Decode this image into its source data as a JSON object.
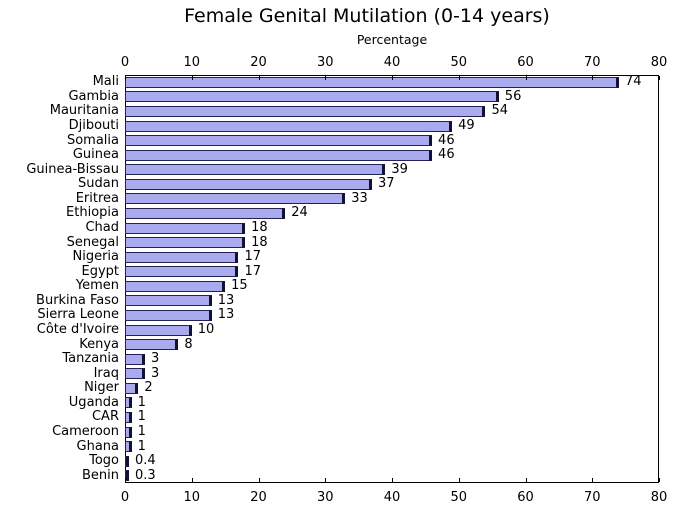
{
  "chart_data": {
    "type": "bar",
    "orientation": "horizontal",
    "title": "Female Genital Mutilation (0-14 years)",
    "xlabel": "Percentage",
    "xlim": [
      0,
      80
    ],
    "x_ticks": [
      0,
      10,
      20,
      30,
      40,
      50,
      60,
      70,
      80
    ],
    "x_tick_labels_positions": "top and bottom",
    "grid": false,
    "legend": "none",
    "bar_color": "#aaaaee",
    "bar_edge_color": "#222255",
    "bar_cap_color": "#111133",
    "axis_color": "#000000",
    "categories": [
      "Mali",
      "Gambia",
      "Mauritania",
      "Djibouti",
      "Somalia",
      "Guinea",
      "Guinea-Bissau",
      "Sudan",
      "Eritrea",
      "Ethiopia",
      "Chad",
      "Senegal",
      "Nigeria",
      "Egypt",
      "Yemen",
      "Burkina Faso",
      "Sierra Leone",
      "Côte d'Ivoire",
      "Kenya",
      "Tanzania",
      "Iraq",
      "Niger",
      "Uganda",
      "CAR",
      "Cameroon",
      "Ghana",
      "Togo",
      "Benin"
    ],
    "values": [
      74,
      56,
      54,
      49,
      46,
      46,
      39,
      37,
      33,
      24,
      18,
      18,
      17,
      17,
      15,
      13,
      13,
      10,
      8,
      3,
      3,
      2,
      1,
      1,
      1,
      1,
      0.4,
      0.3
    ],
    "value_labels": [
      "74",
      "56",
      "54",
      "49",
      "46",
      "46",
      "39",
      "37",
      "33",
      "24",
      "18",
      "18",
      "17",
      "17",
      "15",
      "13",
      "13",
      "10",
      "8",
      "3",
      "3",
      "2",
      "1",
      "1",
      "1",
      "1",
      "0.4",
      "0.3"
    ]
  }
}
